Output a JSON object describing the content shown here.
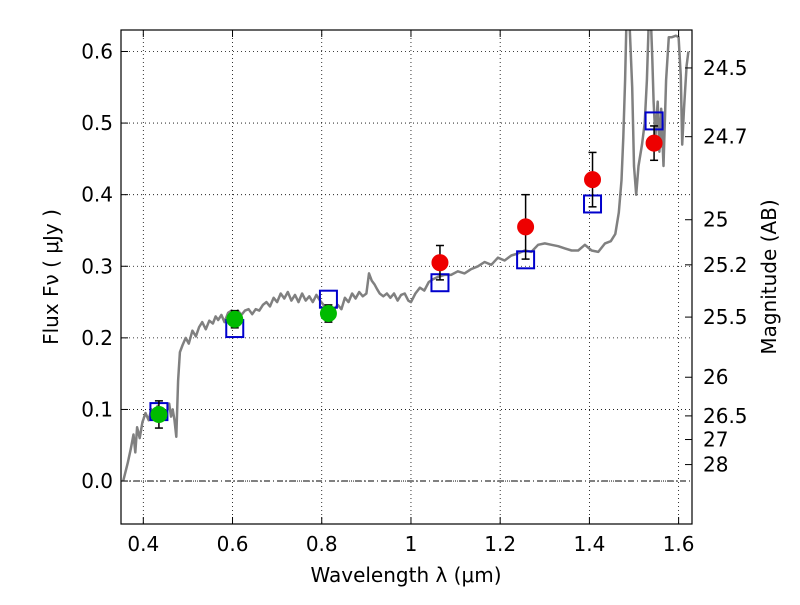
{
  "chart_data": {
    "type": "scatter",
    "xlabel": "Wavelength  λ (μm)",
    "ylabel": "Flux  Fν  ( μJy )",
    "y2label": "Magnitude (AB)",
    "xlim": [
      0.35,
      1.63
    ],
    "ylim": [
      -0.06,
      0.63
    ],
    "grid": true,
    "x_ticks": [
      0.4,
      0.6,
      0.8,
      1.0,
      1.2,
      1.4,
      1.6
    ],
    "x_tick_labels": [
      "0.4",
      "0.6",
      "0.8",
      "1",
      "1.2",
      "1.4",
      "1.6"
    ],
    "y_ticks": [
      0.0,
      0.1,
      0.2,
      0.3,
      0.4,
      0.5,
      0.6
    ],
    "y_tick_labels": [
      "0.0",
      "0.1",
      "0.2",
      "0.3",
      "0.4",
      "0.5",
      "0.6"
    ],
    "y2_ticks": [
      {
        "label": "24.5",
        "flux": 0.577
      },
      {
        "label": "24.7",
        "flux": 0.481
      },
      {
        "label": "25",
        "flux": 0.365
      },
      {
        "label": "25.2",
        "flux": 0.302
      },
      {
        "label": "25.5",
        "flux": 0.229
      },
      {
        "label": "26",
        "flux": 0.145
      },
      {
        "label": "26.5",
        "flux": 0.091
      },
      {
        "label": "27",
        "flux": 0.058
      },
      {
        "label": "28",
        "flux": 0.023
      }
    ],
    "series": [
      {
        "marker": "line",
        "color": "#808080",
        "points": [
          [
            0.355,
            0.0
          ],
          [
            0.365,
            0.025
          ],
          [
            0.372,
            0.045
          ],
          [
            0.378,
            0.065
          ],
          [
            0.382,
            0.04
          ],
          [
            0.386,
            0.075
          ],
          [
            0.392,
            0.06
          ],
          [
            0.398,
            0.082
          ],
          [
            0.405,
            0.095
          ],
          [
            0.412,
            0.085
          ],
          [
            0.418,
            0.1
          ],
          [
            0.425,
            0.095
          ],
          [
            0.432,
            0.105
          ],
          [
            0.438,
            0.09
          ],
          [
            0.445,
            0.1
          ],
          [
            0.452,
            0.095
          ],
          [
            0.458,
            0.108
          ],
          [
            0.462,
            0.09
          ],
          [
            0.466,
            0.1
          ],
          [
            0.47,
            0.085
          ],
          [
            0.474,
            0.062
          ],
          [
            0.478,
            0.14
          ],
          [
            0.482,
            0.18
          ],
          [
            0.488,
            0.19
          ],
          [
            0.495,
            0.2
          ],
          [
            0.502,
            0.192
          ],
          [
            0.51,
            0.21
          ],
          [
            0.518,
            0.202
          ],
          [
            0.525,
            0.215
          ],
          [
            0.532,
            0.222
          ],
          [
            0.54,
            0.212
          ],
          [
            0.548,
            0.224
          ],
          [
            0.556,
            0.22
          ],
          [
            0.562,
            0.23
          ],
          [
            0.568,
            0.225
          ],
          [
            0.575,
            0.232
          ],
          [
            0.582,
            0.222
          ],
          [
            0.59,
            0.235
          ],
          [
            0.598,
            0.238
          ],
          [
            0.605,
            0.23
          ],
          [
            0.612,
            0.238
          ],
          [
            0.62,
            0.232
          ],
          [
            0.628,
            0.238
          ],
          [
            0.636,
            0.24
          ],
          [
            0.644,
            0.233
          ],
          [
            0.652,
            0.24
          ],
          [
            0.66,
            0.238
          ],
          [
            0.668,
            0.246
          ],
          [
            0.676,
            0.25
          ],
          [
            0.684,
            0.244
          ],
          [
            0.692,
            0.256
          ],
          [
            0.7,
            0.25
          ],
          [
            0.708,
            0.262
          ],
          [
            0.716,
            0.255
          ],
          [
            0.724,
            0.264
          ],
          [
            0.732,
            0.252
          ],
          [
            0.74,
            0.26
          ],
          [
            0.748,
            0.25
          ],
          [
            0.756,
            0.262
          ],
          [
            0.764,
            0.252
          ],
          [
            0.772,
            0.258
          ],
          [
            0.78,
            0.25
          ],
          [
            0.788,
            0.26
          ],
          [
            0.796,
            0.252
          ],
          [
            0.804,
            0.246
          ],
          [
            0.812,
            0.238
          ],
          [
            0.82,
            0.232
          ],
          [
            0.828,
            0.24
          ],
          [
            0.836,
            0.246
          ],
          [
            0.844,
            0.24
          ],
          [
            0.852,
            0.256
          ],
          [
            0.86,
            0.25
          ],
          [
            0.868,
            0.262
          ],
          [
            0.876,
            0.255
          ],
          [
            0.884,
            0.264
          ],
          [
            0.892,
            0.258
          ],
          [
            0.9,
            0.262
          ],
          [
            0.906,
            0.29
          ],
          [
            0.912,
            0.28
          ],
          [
            0.918,
            0.275
          ],
          [
            0.924,
            0.268
          ],
          [
            0.93,
            0.262
          ],
          [
            0.938,
            0.258
          ],
          [
            0.946,
            0.262
          ],
          [
            0.954,
            0.256
          ],
          [
            0.962,
            0.262
          ],
          [
            0.97,
            0.252
          ],
          [
            0.978,
            0.26
          ],
          [
            0.986,
            0.262
          ],
          [
            0.994,
            0.252
          ],
          [
            1.0,
            0.25
          ],
          [
            1.01,
            0.262
          ],
          [
            1.02,
            0.27
          ],
          [
            1.03,
            0.266
          ],
          [
            1.04,
            0.278
          ],
          [
            1.05,
            0.282
          ],
          [
            1.06,
            0.285
          ],
          [
            1.075,
            0.288
          ],
          [
            1.09,
            0.288
          ],
          [
            1.105,
            0.293
          ],
          [
            1.12,
            0.29
          ],
          [
            1.135,
            0.296
          ],
          [
            1.15,
            0.3
          ],
          [
            1.165,
            0.306
          ],
          [
            1.18,
            0.302
          ],
          [
            1.195,
            0.312
          ],
          [
            1.21,
            0.308
          ],
          [
            1.225,
            0.315
          ],
          [
            1.24,
            0.318
          ],
          [
            1.255,
            0.322
          ],
          [
            1.27,
            0.32
          ],
          [
            1.285,
            0.33
          ],
          [
            1.3,
            0.332
          ],
          [
            1.315,
            0.33
          ],
          [
            1.33,
            0.328
          ],
          [
            1.345,
            0.325
          ],
          [
            1.36,
            0.322
          ],
          [
            1.375,
            0.322
          ],
          [
            1.39,
            0.33
          ],
          [
            1.405,
            0.322
          ],
          [
            1.42,
            0.32
          ],
          [
            1.435,
            0.332
          ],
          [
            1.448,
            0.335
          ],
          [
            1.458,
            0.345
          ],
          [
            1.466,
            0.375
          ],
          [
            1.472,
            0.42
          ],
          [
            1.476,
            0.48
          ],
          [
            1.48,
            0.56
          ],
          [
            1.483,
            0.64
          ],
          [
            1.49,
            0.64
          ],
          [
            1.496,
            0.55
          ],
          [
            1.5,
            0.44
          ],
          [
            1.505,
            0.4
          ],
          [
            1.51,
            0.44
          ],
          [
            1.518,
            0.47
          ],
          [
            1.524,
            0.5
          ],
          [
            1.529,
            0.56
          ],
          [
            1.533,
            0.64
          ],
          [
            1.538,
            0.64
          ],
          [
            1.541,
            0.59
          ],
          [
            1.544,
            0.53
          ],
          [
            1.548,
            0.48
          ],
          [
            1.553,
            0.53
          ],
          [
            1.557,
            0.46
          ],
          [
            1.561,
            0.52
          ],
          [
            1.566,
            0.44
          ],
          [
            1.572,
            0.56
          ],
          [
            1.578,
            0.62
          ],
          [
            1.585,
            0.62
          ],
          [
            1.594,
            0.622
          ],
          [
            1.6,
            0.62
          ],
          [
            1.605,
            0.565
          ],
          [
            1.608,
            0.47
          ],
          [
            1.612,
            0.52
          ],
          [
            1.618,
            0.58
          ],
          [
            1.622,
            0.6
          ]
        ]
      },
      {
        "marker": "open-square",
        "color": "#0000cc",
        "points": [
          [
            0.435,
            0.097
          ],
          [
            0.605,
            0.213
          ],
          [
            0.815,
            0.254
          ],
          [
            1.065,
            0.277
          ],
          [
            1.257,
            0.309
          ],
          [
            1.407,
            0.387
          ],
          [
            1.545,
            0.503
          ]
        ]
      },
      {
        "marker": "filled-circle",
        "color": "#00bb00",
        "points": [
          {
            "x": 0.435,
            "y": 0.093,
            "err": 0.019
          },
          {
            "x": 0.605,
            "y": 0.226,
            "err": 0.012
          },
          {
            "x": 0.815,
            "y": 0.234,
            "err": 0.012
          }
        ]
      },
      {
        "marker": "filled-circle",
        "color": "#ee0000",
        "points": [
          {
            "x": 1.065,
            "y": 0.305,
            "err": 0.024
          },
          {
            "x": 1.257,
            "y": 0.355,
            "err": 0.045
          },
          {
            "x": 1.407,
            "y": 0.421,
            "err": 0.038
          },
          {
            "x": 1.545,
            "y": 0.472,
            "err": 0.024
          }
        ]
      }
    ]
  }
}
